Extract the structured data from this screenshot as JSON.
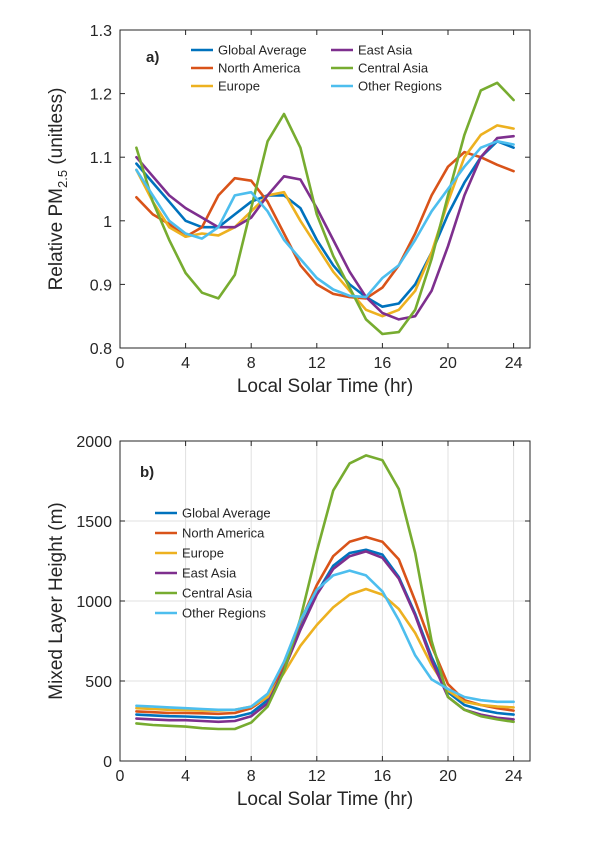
{
  "colors": {
    "Global Average": "#0072BD",
    "North America": "#D95319",
    "Europe": "#EDB120",
    "East Asia": "#7E2F8E",
    "Central Asia": "#77AC30",
    "Other Regions": "#4DBEEE"
  },
  "chart_data": [
    {
      "type": "line",
      "panel_label": "a)",
      "title": "",
      "xlabel": "Local Solar Time (hr)",
      "ylabel": "Relative PM",
      "ylabel_sub": "2.5",
      "ylabel_suffix": " (unitless)",
      "xlim": [
        0,
        25
      ],
      "ylim": [
        0.8,
        1.3
      ],
      "xticks": [
        0,
        4,
        8,
        12,
        16,
        20,
        24
      ],
      "yticks": [
        0.8,
        0.9,
        1.0,
        1.1,
        1.2,
        1.3
      ],
      "ytick_labels": [
        "0.8",
        "0.9",
        "1",
        "1.1",
        "1.2",
        "1.3"
      ],
      "grid": false,
      "legend": "top, two columns",
      "x": [
        1,
        2,
        3,
        4,
        5,
        6,
        7,
        8,
        9,
        10,
        11,
        12,
        13,
        14,
        15,
        16,
        17,
        18,
        19,
        20,
        21,
        22,
        23,
        24
      ],
      "series": [
        {
          "name": "Global Average",
          "values": [
            1.09,
            1.06,
            1.03,
            1.0,
            0.99,
            0.99,
            1.01,
            1.03,
            1.04,
            1.04,
            1.02,
            0.97,
            0.93,
            0.9,
            0.88,
            0.865,
            0.87,
            0.9,
            0.95,
            1.01,
            1.06,
            1.1,
            1.125,
            1.115
          ]
        },
        {
          "name": "North America",
          "values": [
            1.037,
            1.01,
            0.995,
            0.975,
            0.99,
            1.04,
            1.067,
            1.063,
            1.03,
            0.98,
            0.93,
            0.9,
            0.885,
            0.88,
            0.878,
            0.895,
            0.93,
            0.98,
            1.04,
            1.085,
            1.108,
            1.1,
            1.088,
            1.078
          ]
        },
        {
          "name": "Europe",
          "values": [
            1.08,
            1.03,
            0.99,
            0.975,
            0.98,
            0.977,
            0.99,
            1.015,
            1.04,
            1.045,
            1.0,
            0.96,
            0.92,
            0.89,
            0.86,
            0.85,
            0.86,
            0.89,
            0.95,
            1.03,
            1.1,
            1.135,
            1.15,
            1.145
          ]
        },
        {
          "name": "East Asia",
          "values": [
            1.1,
            1.07,
            1.04,
            1.02,
            1.005,
            0.99,
            0.99,
            1.005,
            1.04,
            1.07,
            1.065,
            1.02,
            0.97,
            0.92,
            0.88,
            0.855,
            0.845,
            0.85,
            0.89,
            0.96,
            1.04,
            1.1,
            1.13,
            1.133
          ]
        },
        {
          "name": "Central Asia",
          "values": [
            1.115,
            1.03,
            0.97,
            0.918,
            0.887,
            0.878,
            0.915,
            1.02,
            1.125,
            1.168,
            1.115,
            1.01,
            0.945,
            0.895,
            0.845,
            0.822,
            0.825,
            0.86,
            0.94,
            1.04,
            1.135,
            1.205,
            1.217,
            1.19
          ]
        },
        {
          "name": "Other Regions",
          "values": [
            1.08,
            1.04,
            1.0,
            0.98,
            0.972,
            0.99,
            1.04,
            1.045,
            1.015,
            0.97,
            0.94,
            0.91,
            0.892,
            0.882,
            0.88,
            0.91,
            0.93,
            0.97,
            1.015,
            1.05,
            1.085,
            1.115,
            1.125,
            1.12
          ]
        }
      ]
    },
    {
      "type": "line",
      "panel_label": "b)",
      "title": "",
      "xlabel": "Local Solar Time (hr)",
      "ylabel": "Mixed Layer Height (m)",
      "xlim": [
        0,
        25
      ],
      "ylim": [
        0,
        2000
      ],
      "xticks": [
        0,
        4,
        8,
        12,
        16,
        20,
        24
      ],
      "yticks": [
        0,
        500,
        1000,
        1500,
        2000
      ],
      "ytick_labels": [
        "0",
        "500",
        "1000",
        "1500",
        "2000"
      ],
      "grid": true,
      "legend": "left, one column",
      "x": [
        1,
        2,
        3,
        4,
        5,
        6,
        7,
        8,
        9,
        10,
        11,
        12,
        13,
        14,
        15,
        16,
        17,
        18,
        19,
        20,
        21,
        22,
        23,
        24
      ],
      "series": [
        {
          "name": "Global Average",
          "values": [
            290,
            285,
            280,
            278,
            274,
            270,
            275,
            300,
            380,
            580,
            830,
            1050,
            1220,
            1300,
            1320,
            1290,
            1150,
            920,
            650,
            430,
            350,
            320,
            300,
            290
          ]
        },
        {
          "name": "North America",
          "values": [
            310,
            305,
            300,
            300,
            298,
            295,
            300,
            330,
            400,
            600,
            870,
            1100,
            1280,
            1370,
            1400,
            1370,
            1260,
            1000,
            720,
            480,
            380,
            350,
            330,
            315
          ]
        },
        {
          "name": "Europe",
          "values": [
            330,
            325,
            320,
            318,
            315,
            315,
            320,
            340,
            400,
            550,
            720,
            850,
            960,
            1040,
            1075,
            1040,
            950,
            800,
            600,
            440,
            370,
            350,
            340,
            335
          ]
        },
        {
          "name": "East Asia",
          "values": [
            265,
            260,
            255,
            255,
            250,
            245,
            250,
            280,
            360,
            570,
            820,
            1040,
            1200,
            1280,
            1310,
            1270,
            1140,
            910,
            630,
            400,
            320,
            290,
            270,
            260
          ]
        },
        {
          "name": "Central Asia",
          "values": [
            235,
            225,
            220,
            215,
            205,
            200,
            200,
            240,
            340,
            560,
            890,
            1310,
            1690,
            1860,
            1910,
            1880,
            1700,
            1300,
            750,
            400,
            320,
            280,
            260,
            245
          ]
        },
        {
          "name": "Other Regions",
          "values": [
            345,
            340,
            335,
            330,
            325,
            320,
            320,
            340,
            420,
            620,
            880,
            1070,
            1160,
            1190,
            1160,
            1060,
            880,
            660,
            510,
            450,
            400,
            380,
            370,
            370
          ]
        }
      ]
    }
  ]
}
